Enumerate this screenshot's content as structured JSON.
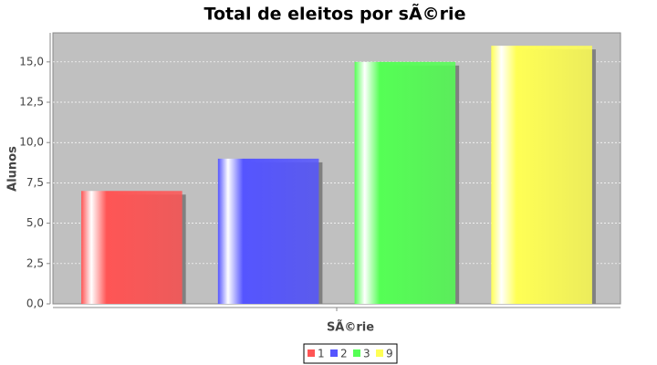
{
  "chart_data": {
    "type": "bar",
    "title": "Total de eleitos por sÃ©rie",
    "x_label": "SÃ©rie",
    "y_label": "Alunos",
    "categories": [
      null
    ],
    "series": [
      {
        "name": "1",
        "color": "#ff5555",
        "values": [
          7
        ]
      },
      {
        "name": "2",
        "color": "#5555ff",
        "values": [
          9
        ]
      },
      {
        "name": "3",
        "color": "#55ff55",
        "values": [
          15
        ]
      },
      {
        "name": "9",
        "color": "#ffff55",
        "values": [
          16
        ]
      }
    ],
    "ylim": [
      0,
      16.8
    ],
    "yticks": [
      {
        "value": 0,
        "label": "0,0"
      },
      {
        "value": 2.5,
        "label": "2,5"
      },
      {
        "value": 5,
        "label": "5,0"
      },
      {
        "value": 7.5,
        "label": "7,5"
      },
      {
        "value": 10,
        "label": "10,0"
      },
      {
        "value": 12.5,
        "label": "12,5"
      },
      {
        "value": 15,
        "label": "15,0"
      }
    ],
    "grid": true,
    "legend": "bottom"
  }
}
